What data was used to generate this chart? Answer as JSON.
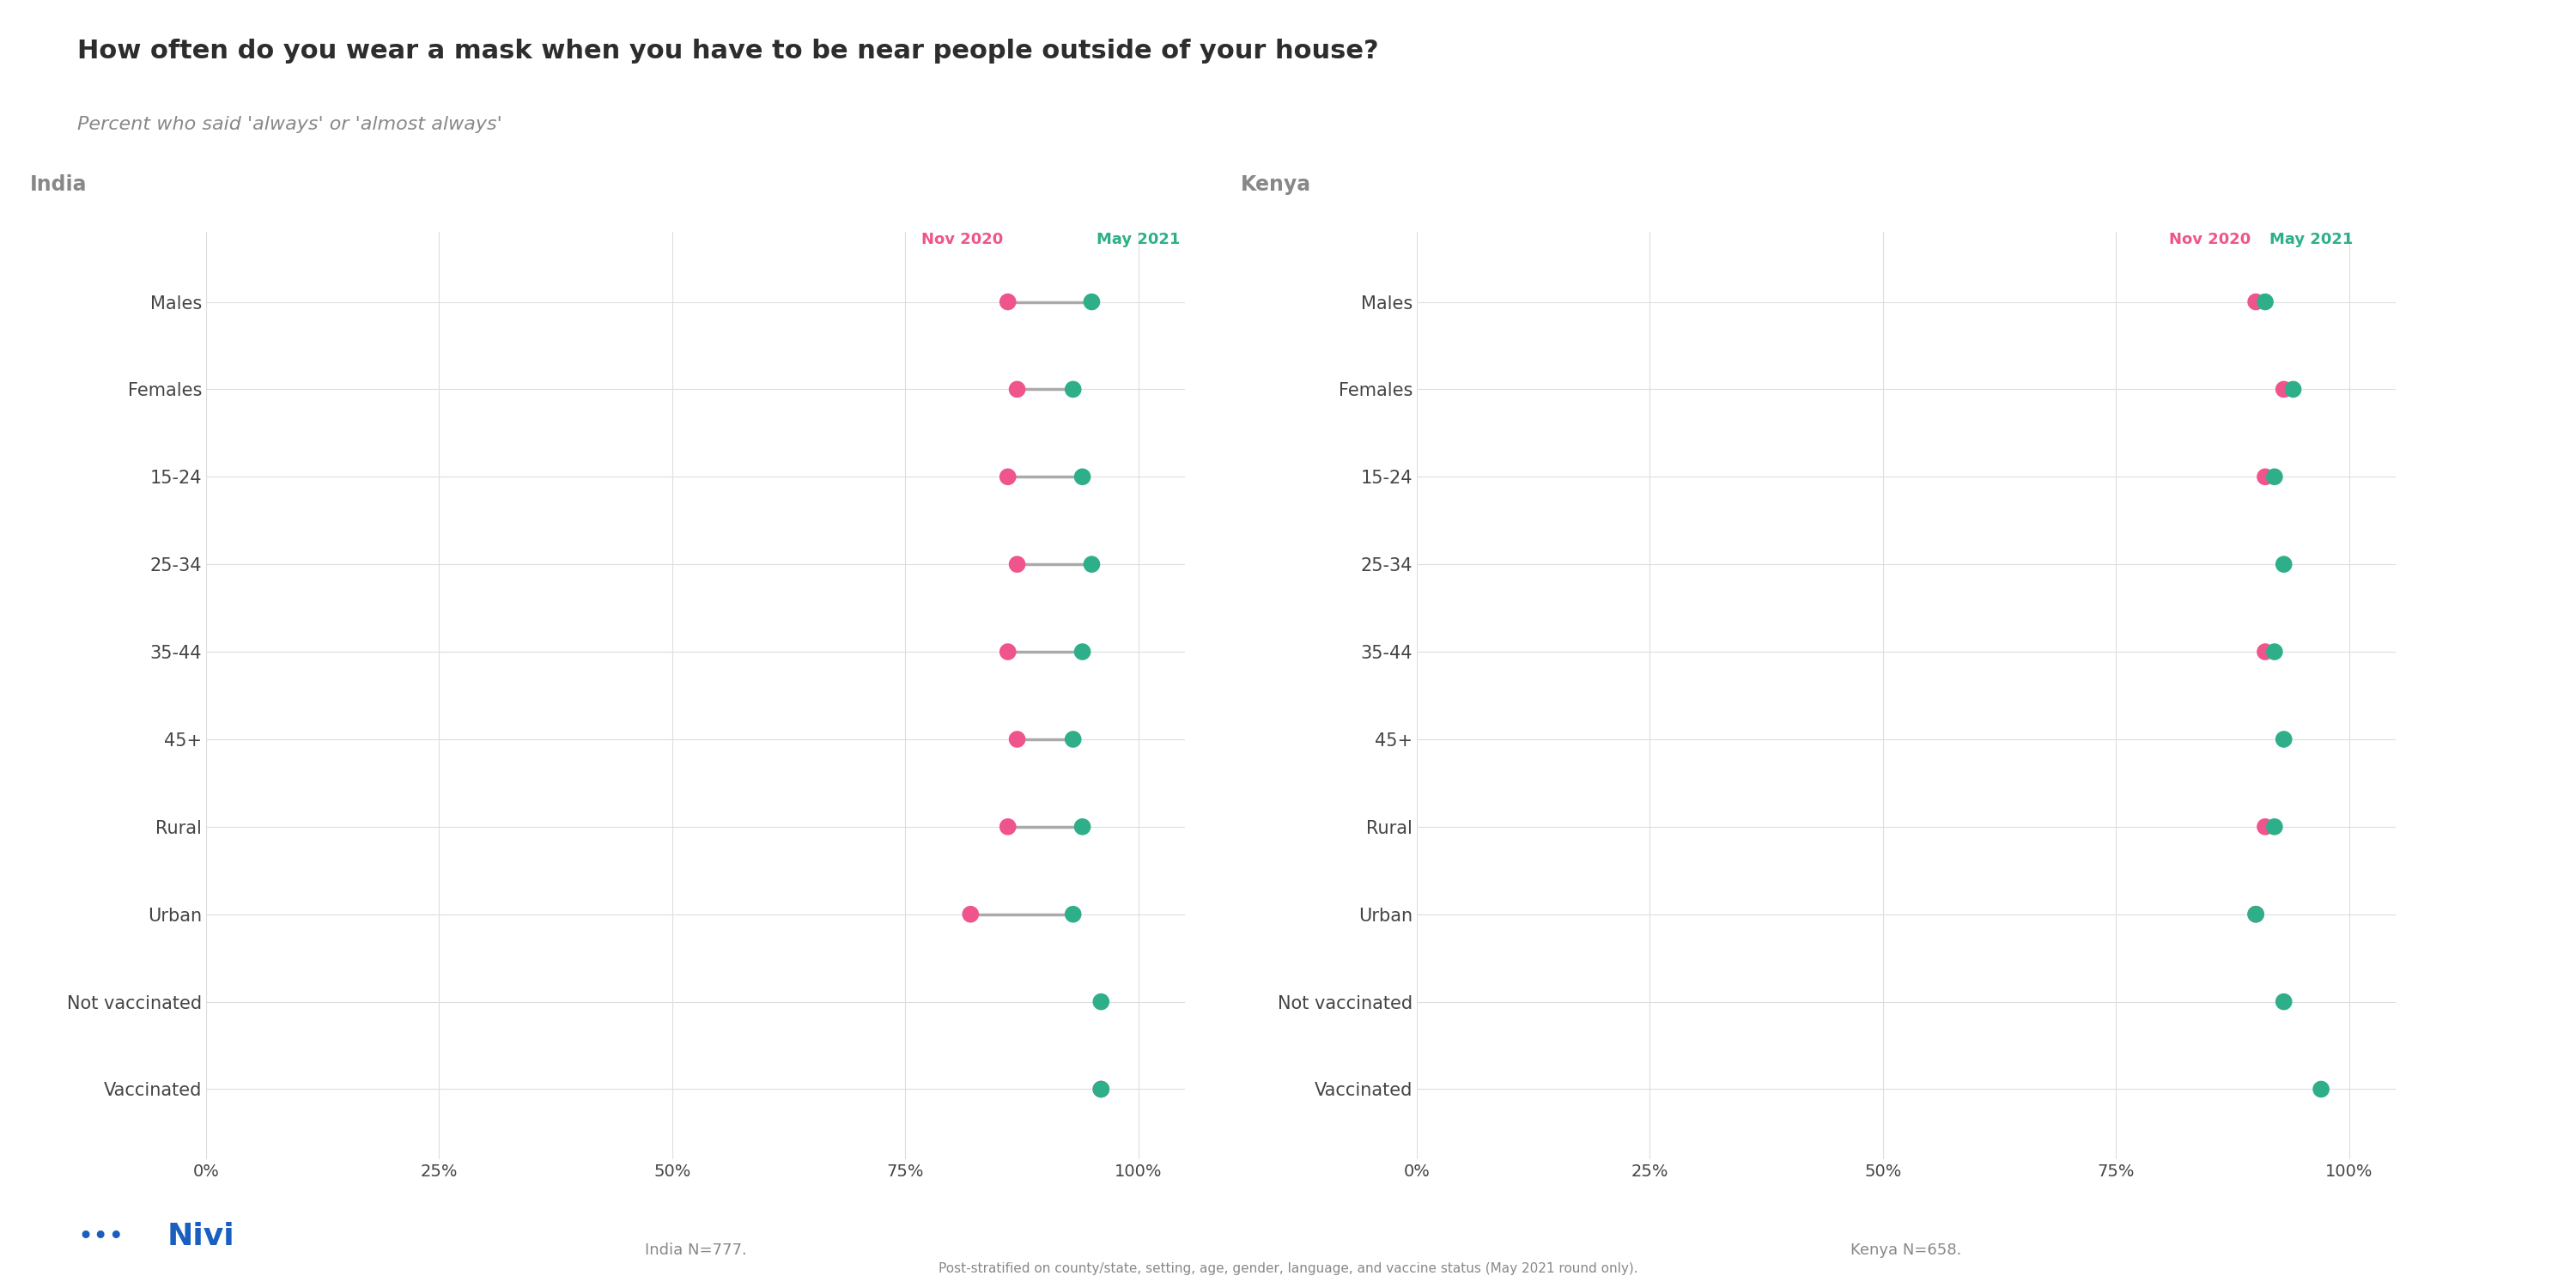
{
  "title": "How often do you wear a mask when you have to be near people outside of your house?",
  "subtitle": "Percent who said 'always' or 'almost always'",
  "india_label": "India",
  "kenya_label": "Kenya",
  "india_note": "India N=777.",
  "kenya_note": "Kenya N=658.",
  "footer": "Post-stratified on county/state, setting, age, gender, language, and vaccine status (May 2021 round only).",
  "nov2020_label": "Nov 2020",
  "may2021_label": "May 2021",
  "categories": [
    "Males",
    "Females",
    "15-24",
    "25-34",
    "35-44",
    "45+",
    "Rural",
    "Urban",
    "Not vaccinated",
    "Vaccinated"
  ],
  "india_nov2020": [
    0.86,
    0.87,
    0.86,
    0.87,
    0.86,
    0.87,
    0.86,
    0.82,
    null,
    0.96
  ],
  "india_may2021": [
    0.95,
    0.93,
    0.94,
    0.95,
    0.94,
    0.93,
    0.94,
    0.93,
    0.96,
    0.96
  ],
  "kenya_nov2020": [
    0.9,
    0.93,
    0.91,
    null,
    0.91,
    null,
    0.91,
    0.9,
    null,
    null
  ],
  "kenya_may2021": [
    0.91,
    0.94,
    0.92,
    0.93,
    0.92,
    0.93,
    0.92,
    0.9,
    0.93,
    0.97
  ],
  "color_nov2020": "#F0548C",
  "color_may2021": "#2EAF8A",
  "color_connector": "#AAAAAA",
  "background_color": "#FFFFFF",
  "grid_color": "#DDDDDD",
  "title_color": "#2D2D2D",
  "subtitle_color": "#888888",
  "country_label_color": "#888888",
  "label_color": "#444444",
  "dot_size": 200,
  "xlim": [
    0,
    1.05
  ],
  "xticks": [
    0,
    0.25,
    0.5,
    0.75,
    1.0
  ],
  "xticklabels": [
    "0%",
    "25%",
    "50%",
    "75%",
    "100%"
  ]
}
